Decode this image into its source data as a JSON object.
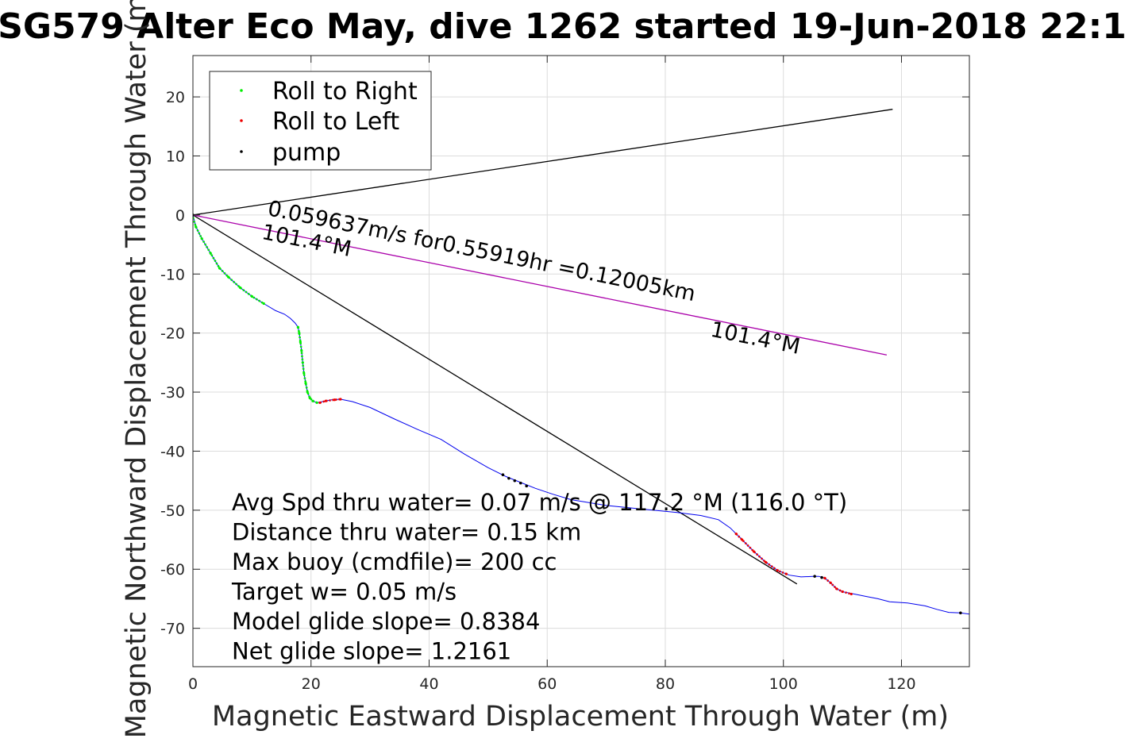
{
  "chart_data": {
    "type": "line",
    "title": "SG579 Alter Eco May, dive 1262 started 19-Jun-2018 22:1",
    "xlabel": "Magnetic Eastward Displacement Through Water (m)",
    "ylabel": "Magnetic Northward Displacement Through Water (m)",
    "xlim": [
      0,
      131.5
    ],
    "ylim": [
      -76.5,
      27
    ],
    "grid": true,
    "x_ticks": [
      "0",
      "20",
      "40",
      "60",
      "80",
      "100",
      "120"
    ],
    "y_ticks": [
      "20",
      "10",
      "0",
      "-10",
      "-20",
      "-30",
      "-40",
      "-50",
      "-60",
      "-70"
    ],
    "legend": {
      "position": "top-left",
      "entries": [
        {
          "label": "Roll to Right",
          "color": "#00ee00"
        },
        {
          "label": "Roll to Left",
          "color": "#ee0000"
        },
        {
          "label": "pump",
          "color": "#000000"
        }
      ]
    },
    "track": {
      "color": "#0000ee",
      "points": [
        [
          0,
          0
        ],
        [
          0.5,
          -2
        ],
        [
          1.5,
          -4
        ],
        [
          3,
          -6.5
        ],
        [
          4.5,
          -9
        ],
        [
          6,
          -10.5
        ],
        [
          8,
          -12.3
        ],
        [
          10,
          -13.8
        ],
        [
          12,
          -15
        ],
        [
          14,
          -16.2
        ],
        [
          15.5,
          -16.8
        ],
        [
          16.5,
          -17.5
        ],
        [
          17.3,
          -18.3
        ],
        [
          17.8,
          -19
        ],
        [
          18,
          -20
        ],
        [
          18.2,
          -21.5
        ],
        [
          18.4,
          -23
        ],
        [
          18.6,
          -25
        ],
        [
          18.8,
          -26.8
        ],
        [
          19.1,
          -28.5
        ],
        [
          19.4,
          -30
        ],
        [
          19.8,
          -31
        ],
        [
          20.3,
          -31.5
        ],
        [
          21,
          -31.8
        ],
        [
          22,
          -31.6
        ],
        [
          23.5,
          -31.3
        ],
        [
          25,
          -31.2
        ],
        [
          27,
          -31.6
        ],
        [
          30,
          -32.6
        ],
        [
          34,
          -34.5
        ],
        [
          38,
          -36.3
        ],
        [
          42,
          -38
        ],
        [
          46,
          -40.5
        ],
        [
          50,
          -42.8
        ],
        [
          53,
          -44.3
        ],
        [
          56,
          -45.5
        ],
        [
          58,
          -46.3
        ],
        [
          61,
          -47.3
        ],
        [
          64,
          -48.2
        ],
        [
          70,
          -49.2
        ],
        [
          76,
          -49.8
        ],
        [
          82,
          -50.4
        ],
        [
          86,
          -50.9
        ],
        [
          89,
          -51.6
        ],
        [
          91,
          -53
        ],
        [
          93,
          -55
        ],
        [
          95,
          -57
        ],
        [
          97,
          -58.8
        ],
        [
          99,
          -60.2
        ],
        [
          101,
          -61
        ],
        [
          103,
          -61.3
        ],
        [
          105,
          -61.2
        ],
        [
          106,
          -61.2
        ],
        [
          107,
          -61.5
        ],
        [
          108,
          -62.3
        ],
        [
          109,
          -63.3
        ],
        [
          110,
          -63.8
        ],
        [
          112,
          -64.2
        ],
        [
          114,
          -64.6
        ],
        [
          116,
          -65
        ],
        [
          118,
          -65.5
        ],
        [
          121,
          -65.7
        ],
        [
          124,
          -66.2
        ],
        [
          126,
          -66.8
        ],
        [
          128,
          -67.3
        ],
        [
          130,
          -67.4
        ],
        [
          131.5,
          -67.6
        ]
      ]
    },
    "roll_right_segments": [
      [
        [
          0,
          -0.5
        ],
        [
          0.5,
          -2
        ],
        [
          1.5,
          -4
        ],
        [
          3,
          -6.5
        ],
        [
          4.5,
          -9
        ],
        [
          6,
          -10.5
        ],
        [
          8,
          -12.3
        ],
        [
          10,
          -13.8
        ],
        [
          12,
          -15
        ]
      ],
      [
        [
          17.8,
          -19
        ],
        [
          18,
          -20
        ],
        [
          18.2,
          -21.5
        ],
        [
          18.4,
          -23
        ],
        [
          18.6,
          -25
        ],
        [
          18.8,
          -26.8
        ],
        [
          19.1,
          -28.5
        ],
        [
          19.4,
          -30
        ],
        [
          19.8,
          -31
        ],
        [
          20.3,
          -31.5
        ],
        [
          21,
          -31.8
        ]
      ]
    ],
    "roll_left_segments": [
      [
        [
          21.5,
          -31.8
        ],
        [
          22.5,
          -31.5
        ],
        [
          24,
          -31.3
        ],
        [
          25,
          -31.2
        ]
      ],
      [
        [
          92,
          -54
        ],
        [
          93,
          -55
        ],
        [
          95,
          -57
        ],
        [
          97,
          -58.8
        ],
        [
          99,
          -60.2
        ],
        [
          100.5,
          -60.8
        ]
      ],
      [
        [
          107,
          -61.5
        ],
        [
          108,
          -62.3
        ],
        [
          109,
          -63.3
        ],
        [
          110,
          -63.8
        ],
        [
          111.5,
          -64.2
        ]
      ],
      [
        [
          130,
          -67.4
        ]
      ]
    ],
    "pump_points": [
      [
        0,
        0
      ],
      [
        52.5,
        -44
      ],
      [
        53.5,
        -44.6
      ],
      [
        54.5,
        -45
      ],
      [
        55.5,
        -45.4
      ],
      [
        56.5,
        -45.9
      ],
      [
        105.3,
        -61.2
      ],
      [
        106.5,
        -61.4
      ],
      [
        130,
        -67.4
      ]
    ],
    "lines": [
      {
        "name": "upper",
        "color": "#000000",
        "points": [
          [
            0,
            0
          ],
          [
            118.5,
            17.9
          ]
        ]
      },
      {
        "name": "lower",
        "color": "#000000",
        "points": [
          [
            0,
            0
          ],
          [
            102.3,
            -62.5
          ]
        ]
      },
      {
        "name": "mean-heading",
        "color": "#aa00aa",
        "points": [
          [
            0,
            0
          ],
          [
            117.5,
            -23.7
          ]
        ]
      }
    ],
    "annotations": [
      {
        "text": "0.059637m/s for0.55919hr =0.12005km",
        "x": 12.5,
        "y": 0,
        "rotation": 11.4
      },
      {
        "text": "101.4°M",
        "x": 11.5,
        "y": -4,
        "rotation": 11.4
      },
      {
        "text": "101.4°M",
        "x": 87.5,
        "y": -20.5,
        "rotation": 11.4
      }
    ],
    "stats": [
      "Avg Spd thru water=  0.07 m/s @ 117.2 °M (116.0 °T)",
      "Distance thru water=  0.15 km",
      "Max buoy (cmdfile)= 200 cc",
      "Target w= 0.05 m/s",
      "Model glide slope= 0.8384",
      "Net glide slope= 1.2161"
    ]
  }
}
